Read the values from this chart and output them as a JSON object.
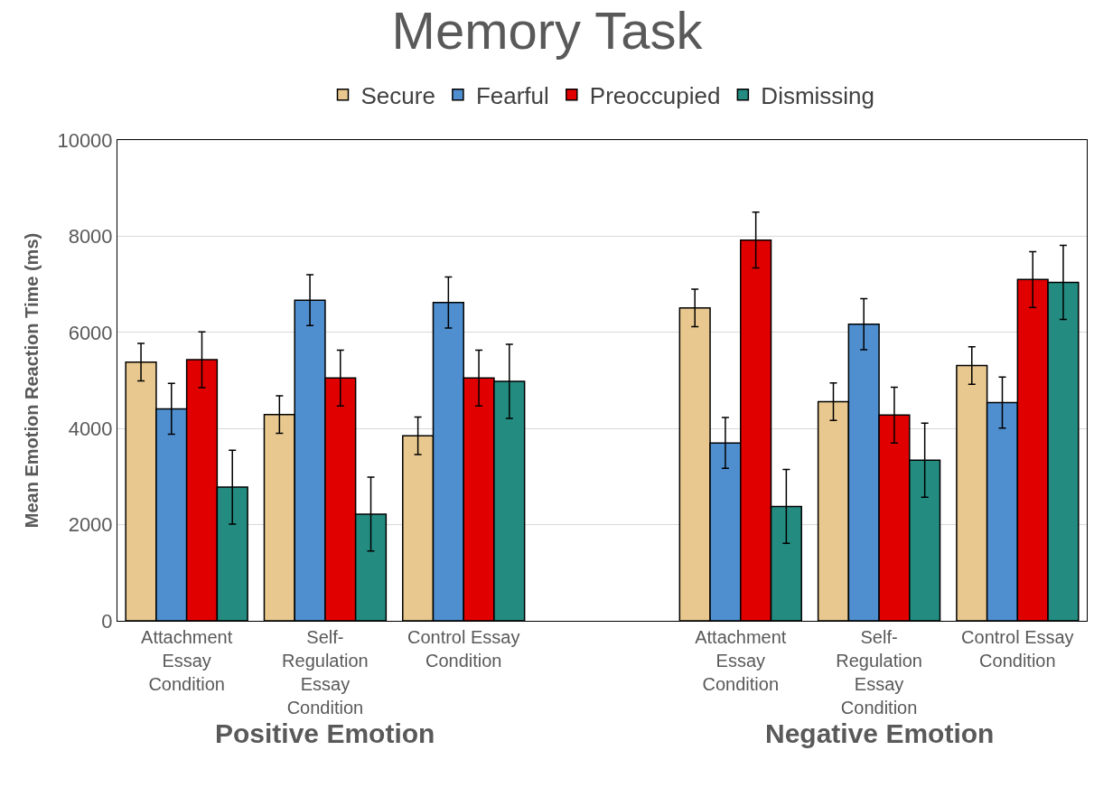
{
  "chart_data": {
    "type": "bar",
    "title": "Memory Task",
    "ylabel": "Mean Emotion Reaction Time (ms)",
    "categories": [
      "Attachment Essay Condition",
      "Self-Regulation Essay Condition",
      "Control Essay Condition",
      null,
      "Attachment Essay Condition",
      "Self-Regulation Essay Condition",
      "Control Essay Condition"
    ],
    "series": [
      {
        "name": "Secure",
        "color": "#e8c88e",
        "values": [
          5380,
          4290,
          3850,
          null,
          6510,
          4560,
          5310
        ],
        "errors": [
          390,
          390,
          390,
          null,
          390,
          390,
          390
        ]
      },
      {
        "name": "Fearful",
        "color": "#4f8fd0",
        "values": [
          4410,
          6670,
          6620,
          null,
          3700,
          6170,
          4540
        ],
        "errors": [
          530,
          530,
          530,
          null,
          530,
          530,
          530
        ]
      },
      {
        "name": "Preoccupied",
        "color": "#e00000",
        "values": [
          5430,
          5050,
          5050,
          null,
          7920,
          4280,
          7100
        ],
        "errors": [
          580,
          580,
          580,
          null,
          580,
          580,
          580
        ]
      },
      {
        "name": "Dismissing",
        "color": "#238b80",
        "values": [
          2780,
          2220,
          4980,
          null,
          2380,
          3340,
          7040
        ],
        "errors": [
          770,
          770,
          770,
          null,
          770,
          770,
          770
        ]
      }
    ],
    "ylim": [
      0,
      10000
    ],
    "yticks": [
      0,
      2000,
      4000,
      6000,
      8000,
      10000
    ],
    "grid": "y",
    "legend": "top",
    "annotations": [
      "Positive Emotion",
      "Negative Emotion"
    ]
  }
}
